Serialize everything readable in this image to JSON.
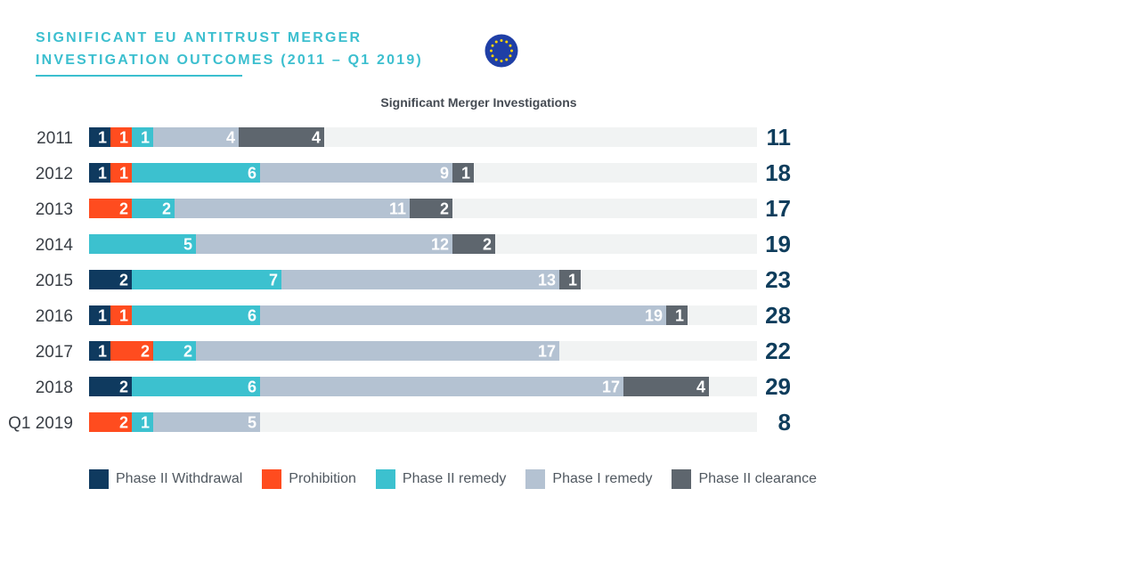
{
  "header": {
    "title_line1": "SIGNIFICANT EU ANTITRUST MERGER",
    "title_line2": "INVESTIGATION OUTCOMES (2011 – Q1 2019)",
    "flag_icon": "eu-flag-icon"
  },
  "chart_data": {
    "type": "bar",
    "orientation": "horizontal",
    "stacked": true,
    "title": "Significant Merger Investigations",
    "categories": [
      "2011",
      "2012",
      "2013",
      "2014",
      "2015",
      "2016",
      "2017",
      "2018",
      "Q1 2019"
    ],
    "series": [
      {
        "name": "Phase II Withdrawal",
        "color": "#0f3a5f",
        "values": [
          1,
          1,
          0,
          0,
          2,
          1,
          1,
          2,
          0
        ]
      },
      {
        "name": "Prohibition",
        "color": "#ff4c1f",
        "values": [
          1,
          1,
          2,
          0,
          0,
          1,
          2,
          0,
          2
        ]
      },
      {
        "name": "Phase II remedy",
        "color": "#3cc1cf",
        "values": [
          1,
          6,
          2,
          5,
          7,
          6,
          2,
          6,
          1
        ]
      },
      {
        "name": "Phase I remedy",
        "color": "#b4c2d2",
        "values": [
          4,
          9,
          11,
          12,
          13,
          19,
          17,
          17,
          5
        ]
      },
      {
        "name": "Phase II clearance",
        "color": "#5e666e",
        "values": [
          4,
          1,
          2,
          2,
          1,
          1,
          0,
          4,
          0
        ]
      }
    ],
    "totals": [
      11,
      18,
      17,
      19,
      23,
      28,
      22,
      29,
      8
    ],
    "xlim": [
      0,
      31
    ],
    "grid": false,
    "legend_position": "bottom",
    "track_color": "#f1f3f3"
  }
}
